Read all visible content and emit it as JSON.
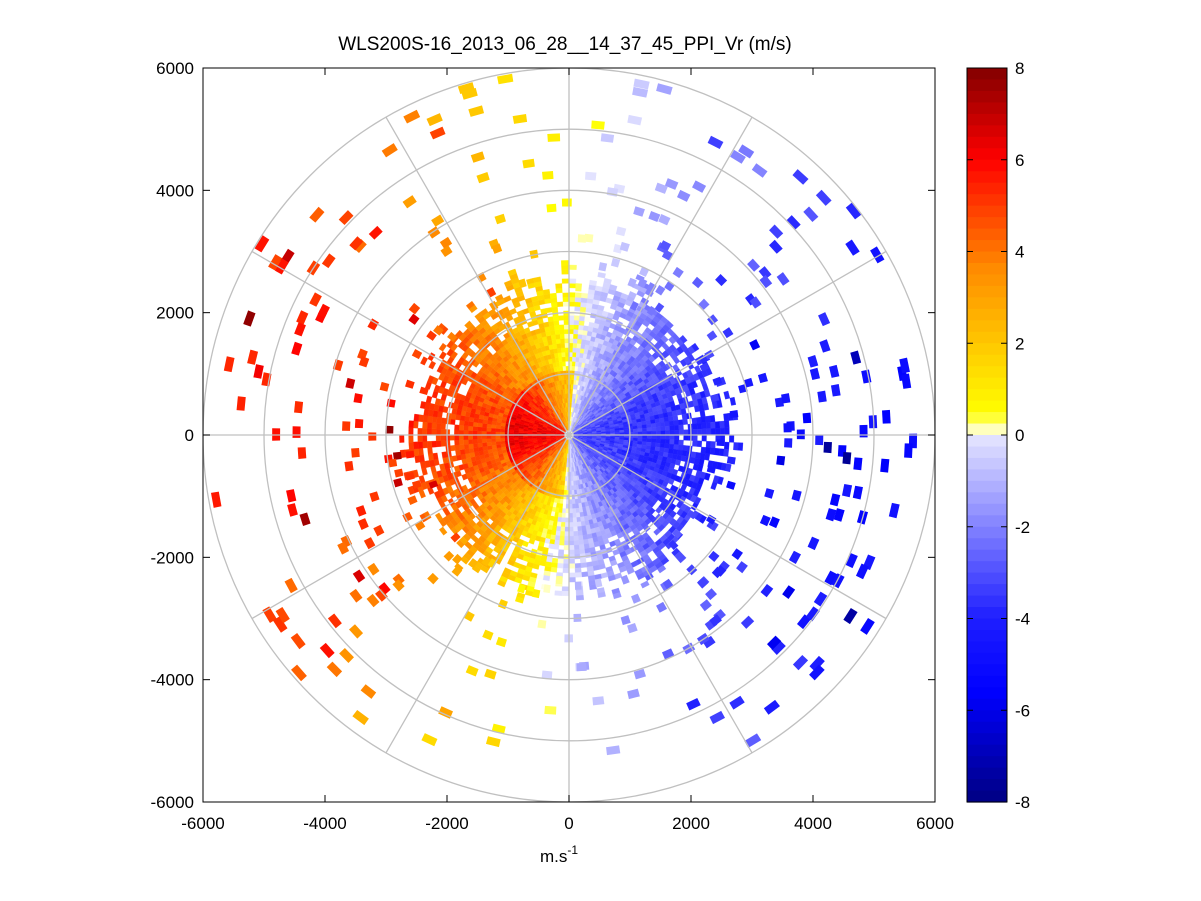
{
  "chart_data": {
    "type": "polar-ppi-heatmap",
    "title": "WLS200S-16_2013_06_28__14_37_45_PPI_Vr (m/s)",
    "xlabel_base": "m.s",
    "xlabel_sup": "-1",
    "ylabel": "",
    "xlim": [
      -6000,
      6000
    ],
    "ylim": [
      -6000,
      6000
    ],
    "x_ticks": [
      "-6000",
      "-4000",
      "-2000",
      "0",
      "2000",
      "4000",
      "6000"
    ],
    "y_ticks": [
      "6000",
      "4000",
      "2000",
      "0",
      "-2000",
      "-4000",
      "-6000"
    ],
    "range_rings": [
      1000,
      2000,
      3000,
      4000,
      5000,
      6000
    ],
    "radial_lines_deg": [
      0,
      30,
      60,
      90,
      120,
      150,
      180,
      210,
      240,
      270,
      300,
      330
    ],
    "colorbar": {
      "min": -8,
      "max": 8,
      "ticks": [
        "8",
        "6",
        "4",
        "2",
        "0",
        "-2",
        "-4",
        "-6",
        "-8"
      ],
      "colormap": "blue-white-yellow-red"
    },
    "field": {
      "description": "radial velocity: positive (yellow/orange/red) on the west half, negative (blue) on the east half",
      "core_range_max": 2600,
      "sparse_range_max": 5900,
      "zero_crossing_azimuth_deg": [
        5,
        160
      ]
    }
  },
  "colors": {
    "grid": "#c0c0c0",
    "axis": "#000000",
    "background": "#ffffff"
  }
}
